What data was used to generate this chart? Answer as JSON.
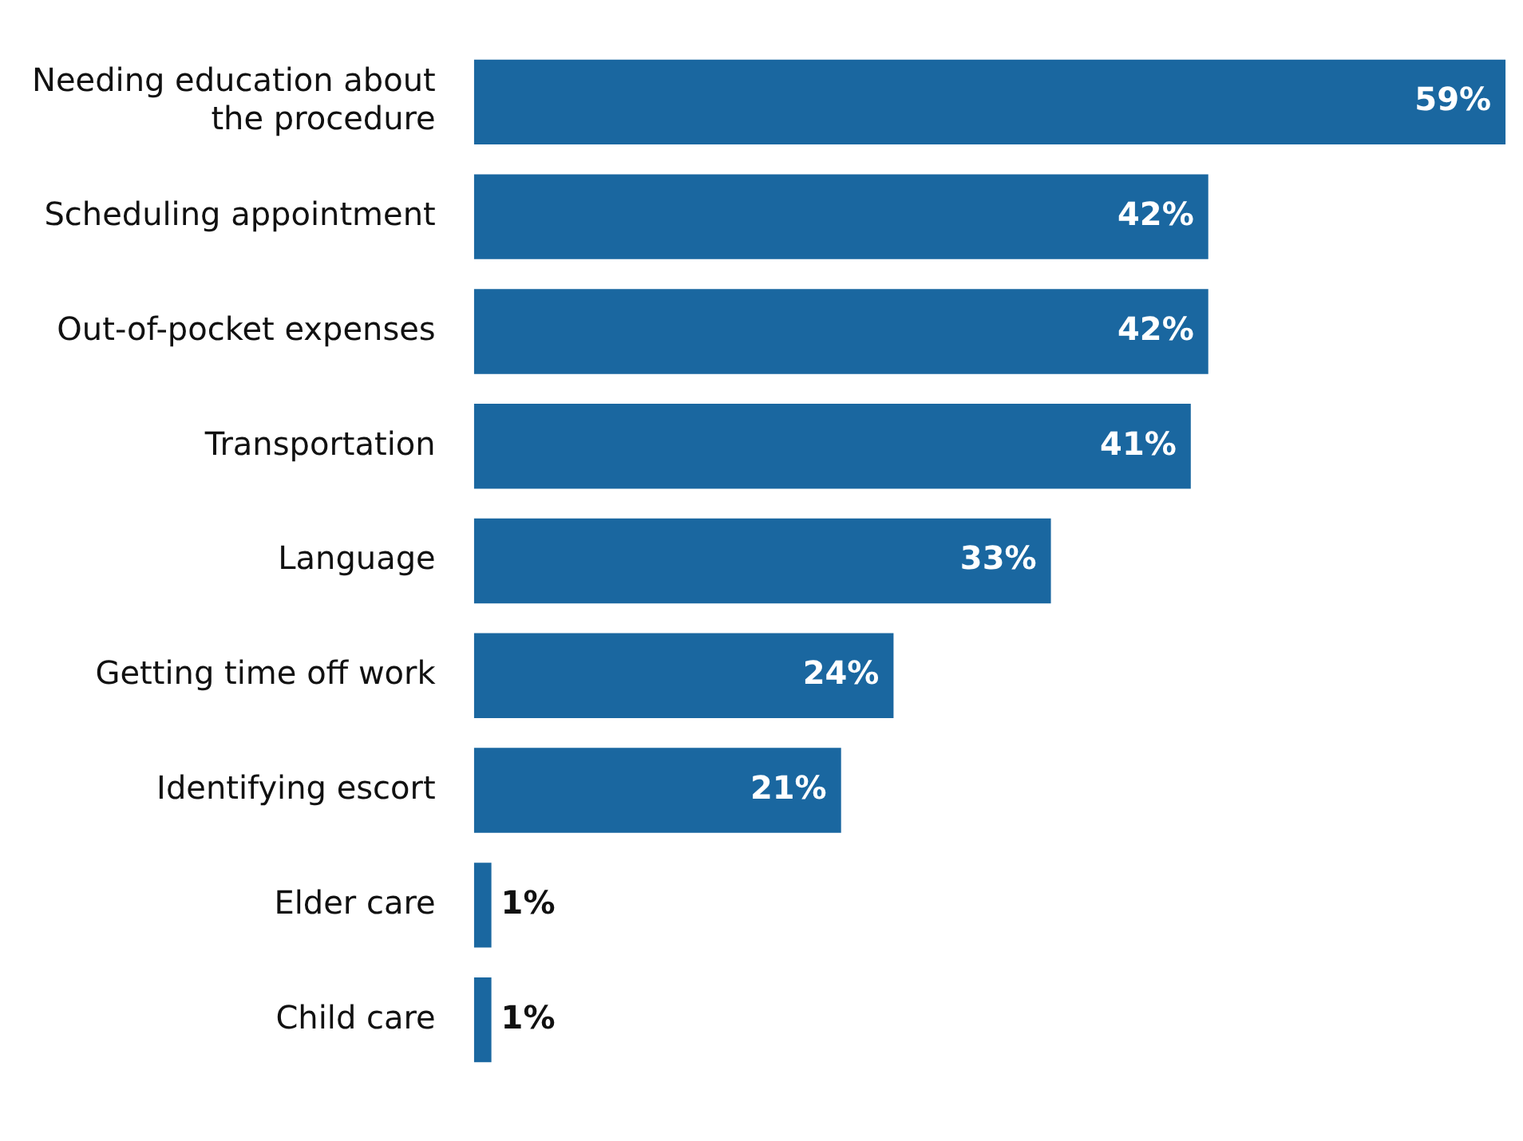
{
  "chart_data": {
    "type": "bar",
    "orientation": "horizontal",
    "categories": [
      "Needing education about the procedure",
      "Scheduling appointment",
      "Out-of-pocket expenses",
      "Transportation",
      "Language",
      "Getting time off work",
      "Identifying escort",
      "Elder care",
      "Child care"
    ],
    "values": [
      59,
      42,
      42,
      41,
      33,
      24,
      21,
      1,
      1
    ],
    "value_labels": [
      "59%",
      "42%",
      "42%",
      "41%",
      "33%",
      "24%",
      "21%",
      "1%",
      "1%"
    ],
    "color": "#1a67a0",
    "legend": false
  }
}
